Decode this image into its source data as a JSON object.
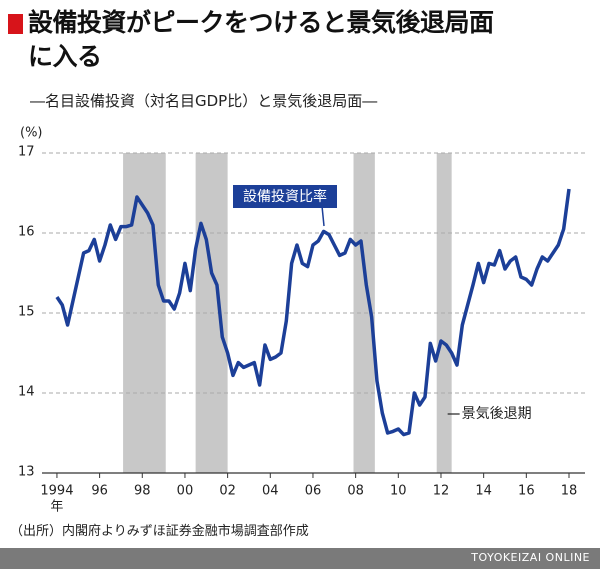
{
  "chart_data": {
    "type": "line",
    "title": "設備投資がピークをつけると景気後退局面\nに入る",
    "subtitle": "―名目設備投資（対名目GDP比）と景気後退局面―",
    "y_unit": "(%)",
    "x_unit": "年",
    "source": "（出所）内閣府よりみずほ証券金融市場調査部作成",
    "credit": "TOYOKEIZAI ONLINE",
    "recession_label": "景気後退期",
    "recessions": [
      [
        1997.1,
        1999.1
      ],
      [
        2000.5,
        2002.0
      ],
      [
        2007.9,
        2008.9
      ],
      [
        2011.8,
        2012.5
      ]
    ],
    "recession_color": "#c8c8c8",
    "x": [
      1994,
      1994.25,
      1994.5,
      1994.75,
      1995,
      1995.25,
      1995.5,
      1995.75,
      1996,
      1996.25,
      1996.5,
      1996.75,
      1997,
      1997.25,
      1997.5,
      1997.75,
      1998,
      1998.25,
      1998.5,
      1998.75,
      1999,
      1999.25,
      1999.5,
      1999.75,
      2000,
      2000.25,
      2000.5,
      2000.75,
      2001,
      2001.25,
      2001.5,
      2001.75,
      2002,
      2002.25,
      2002.5,
      2002.75,
      2003,
      2003.25,
      2003.5,
      2003.75,
      2004,
      2004.25,
      2004.5,
      2004.75,
      2005,
      2005.25,
      2005.5,
      2005.75,
      2006,
      2006.25,
      2006.5,
      2006.75,
      2007,
      2007.25,
      2007.5,
      2007.75,
      2008,
      2008.25,
      2008.5,
      2008.75,
      2009,
      2009.25,
      2009.5,
      2009.75,
      2010,
      2010.25,
      2010.5,
      2010.75,
      2011,
      2011.25,
      2011.5,
      2011.75,
      2012,
      2012.25,
      2012.5,
      2012.75,
      2013,
      2013.25,
      2013.5,
      2013.75,
      2014,
      2014.25,
      2014.5,
      2014.75,
      2015,
      2015.25,
      2015.5,
      2015.75,
      2016,
      2016.25,
      2016.5,
      2016.75,
      2017,
      2017.25,
      2017.5,
      2017.75,
      2018
    ],
    "series": [
      {
        "name": "設備投資比率",
        "color": "#1c3f98",
        "values": [
          15.2,
          15.1,
          14.85,
          15.15,
          15.45,
          15.75,
          15.78,
          15.92,
          15.65,
          15.85,
          16.1,
          15.92,
          16.08,
          16.08,
          16.1,
          16.45,
          16.35,
          16.25,
          16.1,
          15.35,
          15.15,
          15.15,
          15.05,
          15.25,
          15.62,
          15.28,
          15.8,
          16.12,
          15.92,
          15.5,
          15.35,
          14.7,
          14.5,
          14.22,
          14.38,
          14.32,
          14.35,
          14.38,
          14.1,
          14.6,
          14.42,
          14.45,
          14.5,
          14.9,
          15.62,
          15.85,
          15.62,
          15.58,
          15.85,
          15.9,
          16.02,
          15.98,
          15.85,
          15.72,
          15.75,
          15.92,
          15.85,
          15.9,
          15.35,
          14.95,
          14.15,
          13.75,
          13.5,
          13.52,
          13.55,
          13.48,
          13.5,
          14.0,
          13.85,
          13.95,
          14.62,
          14.4,
          14.65,
          14.6,
          14.5,
          14.35,
          14.85,
          15.1,
          15.35,
          15.62,
          15.38,
          15.62,
          15.6,
          15.78,
          15.55,
          15.65,
          15.7,
          15.45,
          15.42,
          15.35,
          15.55,
          15.7,
          15.65,
          15.75,
          15.85,
          16.05,
          16.55
        ]
      }
    ],
    "xlim": [
      1993.3,
      2018.75
    ],
    "xticks": [
      {
        "value": 1994,
        "label": "1994"
      },
      {
        "value": 1996,
        "label": "96"
      },
      {
        "value": 1998,
        "label": "98"
      },
      {
        "value": 2000,
        "label": "00"
      },
      {
        "value": 2002,
        "label": "02"
      },
      {
        "value": 2004,
        "label": "04"
      },
      {
        "value": 2006,
        "label": "06"
      },
      {
        "value": 2008,
        "label": "08"
      },
      {
        "value": 2010,
        "label": "10"
      },
      {
        "value": 2012,
        "label": "12"
      },
      {
        "value": 2014,
        "label": "14"
      },
      {
        "value": 2016,
        "label": "16"
      },
      {
        "value": 2018,
        "label": "18"
      }
    ],
    "ylim": [
      13,
      17
    ],
    "yticks": [
      13,
      14,
      15,
      16,
      17
    ],
    "grid": true
  }
}
